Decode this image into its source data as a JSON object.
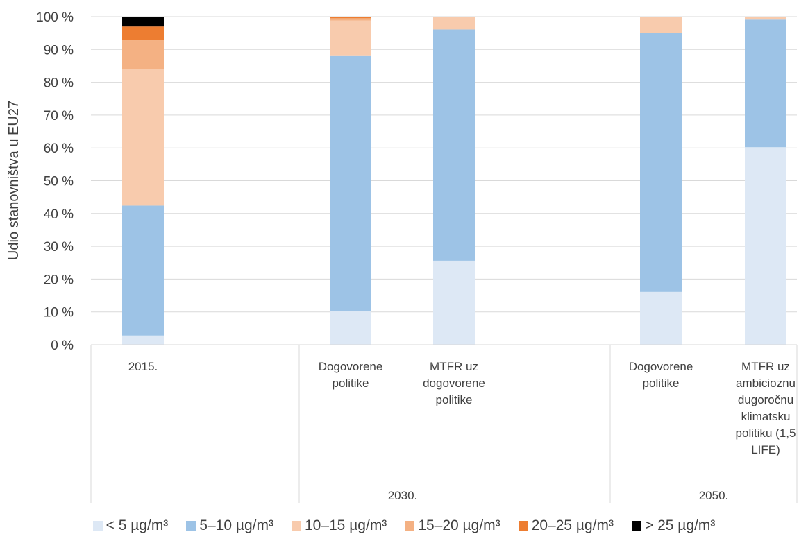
{
  "chart_data": {
    "type": "bar",
    "stacked": true,
    "ylabel": "Udio stanovništva u EU27",
    "ylim": [
      0,
      100
    ],
    "yticks": [
      "0 %",
      "10 %",
      "20 %",
      "30 %",
      "40 %",
      "50 %",
      "60 %",
      "70 %",
      "80 %",
      "90 %",
      "100 %"
    ],
    "grid": true,
    "legend_position": "bottom",
    "groups": [
      {
        "label": "",
        "categories": [
          "2015."
        ]
      },
      {
        "label": "2030.",
        "categories": [
          "Dogovorene politike",
          "MTFR uz dogovorene politike"
        ]
      },
      {
        "label": "2050.",
        "categories": [
          "Dogovorene politike",
          "MTFR uz ambicioznu dugoročnu klimatsku politiku (1,5 LIFE)"
        ]
      }
    ],
    "category_label_lines": [
      [
        "2015."
      ],
      [
        "Dogovorene",
        "politike"
      ],
      [
        "MTFR uz",
        "dogovorene",
        "politike"
      ],
      [
        "Dogovorene",
        "politike"
      ],
      [
        "MTFR uz",
        "ambicioznu",
        "dugoročnu",
        "klimatsku",
        "politiku (1,5",
        "LIFE)"
      ]
    ],
    "series": [
      {
        "name": "< 5 µg/m³",
        "color": "#dde8f5",
        "values": [
          2.8,
          10.3,
          25.6,
          16.1,
          60.2
        ]
      },
      {
        "name": "5–10 µg/m³",
        "color": "#9dc3e6",
        "values": [
          39.6,
          77.7,
          70.5,
          78.9,
          38.9
        ]
      },
      {
        "name": "10–15 µg/m³",
        "color": "#f8cbad",
        "values": [
          41.6,
          10.8,
          3.9,
          4.8,
          0.7
        ]
      },
      {
        "name": "15–20 µg/m³",
        "color": "#f4b183",
        "values": [
          8.8,
          0.7,
          0.0,
          0.2,
          0.2
        ]
      },
      {
        "name": "20–25 µg/m³",
        "color": "#ed7d31",
        "values": [
          4.2,
          0.5,
          0.0,
          0.0,
          0.0
        ]
      },
      {
        "name": "> 25 µg/m³",
        "color": "#000000",
        "values": [
          3.0,
          0.0,
          0.0,
          0.0,
          0.0
        ]
      }
    ]
  }
}
